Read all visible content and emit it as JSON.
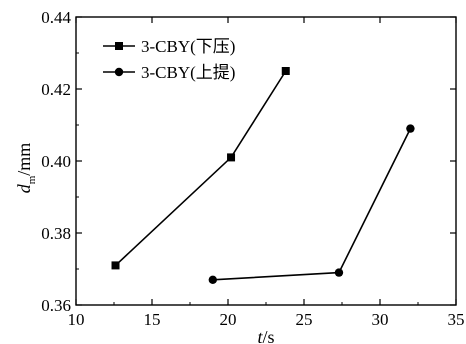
{
  "chart_data": {
    "type": "line",
    "xlabel": "t/s",
    "xlabel_parts": {
      "italic": "t",
      "rest": "/s"
    },
    "ylabel": "d_m/mm",
    "ylabel_parts": {
      "italic": "d",
      "subscript": "m",
      "rest": "/mm"
    },
    "xlim": [
      10,
      35
    ],
    "ylim": [
      0.36,
      0.44
    ],
    "xticks": [
      "10",
      "15",
      "20",
      "25",
      "30",
      "35"
    ],
    "yticks": [
      "0.36",
      "0.38",
      "0.40",
      "0.42",
      "0.44"
    ],
    "xtick_values": [
      10,
      15,
      20,
      25,
      30,
      35
    ],
    "ytick_values": [
      0.36,
      0.38,
      0.4,
      0.42,
      0.44
    ],
    "grid": false,
    "legend_position": "top-left",
    "series": [
      {
        "name": "3-CBY(下压)",
        "marker": "square",
        "color": "#000000",
        "x": [
          12.6,
          20.2,
          23.8
        ],
        "y": [
          0.371,
          0.401,
          0.425
        ]
      },
      {
        "name": "3-CBY(上提)",
        "marker": "circle",
        "color": "#000000",
        "x": [
          19.0,
          27.3,
          32.0
        ],
        "y": [
          0.367,
          0.369,
          0.409
        ]
      }
    ]
  }
}
